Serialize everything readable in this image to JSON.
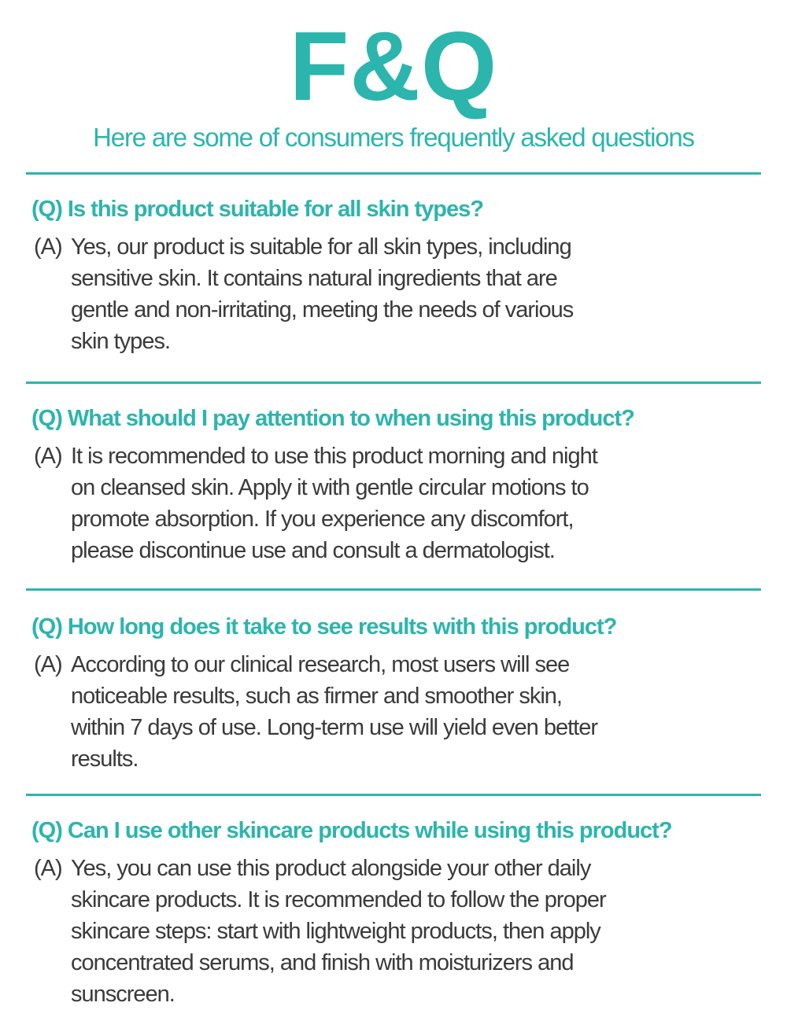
{
  "header": {
    "title": "F&Q",
    "subtitle": "Here are some of consumers frequently asked questions"
  },
  "accent_color": "#2bb5ad",
  "faqs": [
    {
      "question": "(Q) Is this product suitable for all skin types?",
      "answer_prefix": "(A)",
      "answer_lines": [
        "Yes, our product is suitable for all skin types, including",
        "sensitive skin. It contains natural ingredients that are",
        "gentle and non-irritating, meeting the needs of various",
        "skin types."
      ]
    },
    {
      "question": "(Q) What should I pay attention to when using this product?",
      "answer_prefix": "(A)",
      "answer_lines": [
        "It is recommended to use this product morning and night",
        "on cleansed skin. Apply it with gentle circular motions to",
        "promote absorption. If you experience any discomfort,",
        "please discontinue use and consult a dermatologist."
      ]
    },
    {
      "question": "(Q) How long does it take to see results with this product?",
      "answer_prefix": "(A)",
      "answer_lines": [
        "According to our clinical research, most users will see",
        "noticeable results, such as firmer and smoother skin,",
        "within 7 days of use. Long-term use will yield even better",
        "results."
      ]
    },
    {
      "question": "(Q) Can I use other skincare products while using this product?",
      "answer_prefix": "(A)",
      "answer_lines": [
        "Yes, you can use this product alongside your other daily",
        "skincare products. It is recommended to follow the proper",
        "skincare steps: start with lightweight products, then apply",
        "concentrated serums, and finish with moisturizers and",
        "sunscreen."
      ]
    }
  ]
}
